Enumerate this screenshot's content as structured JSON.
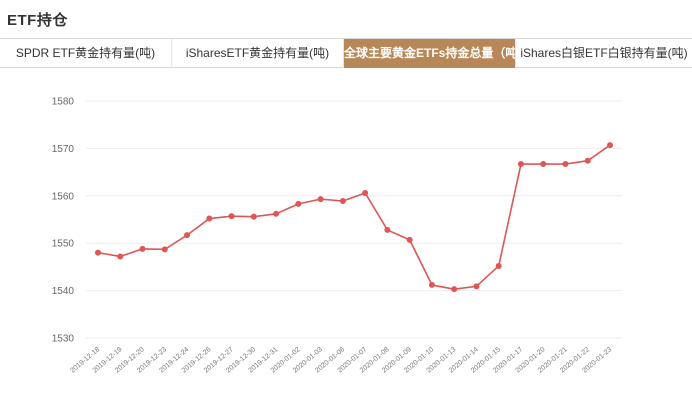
{
  "header": {
    "title": "ETF持仓"
  },
  "tabs": [
    {
      "label": "SPDR ETF黄金持有量(吨)",
      "active": false
    },
    {
      "label": "iSharesETF黄金持有量(吨)",
      "active": false
    },
    {
      "label": "全球主要黄金ETFs持金总量（吨）",
      "active": true
    },
    {
      "label": "iShares白银ETF白银持有量(吨)",
      "active": false
    }
  ],
  "colors": {
    "accent": "#b88758",
    "line": "#e05555",
    "grid": "#eeeeee"
  },
  "chart_data": {
    "type": "line",
    "title": "",
    "xlabel": "",
    "ylabel": "",
    "ylim": [
      1530,
      1580
    ],
    "yticks": [
      1530,
      1540,
      1550,
      1560,
      1570,
      1580
    ],
    "grid": true,
    "categories": [
      "2019-12-18",
      "2019-12-19",
      "2019-12-20",
      "2019-12-23",
      "2019-12-24",
      "2019-12-26",
      "2019-12-27",
      "2019-12-30",
      "2019-12-31",
      "2020-01-02",
      "2020-01-03",
      "2020-01-06",
      "2020-01-07",
      "2020-01-08",
      "2020-01-09",
      "2020-01-10",
      "2020-01-13",
      "2020-01-14",
      "2020-01-15",
      "2020-01-17",
      "2020-01-20",
      "2020-01-21",
      "2020-01-22",
      "2020-01-23"
    ],
    "series": [
      {
        "values": [
          1548.0,
          1547.2,
          1548.8,
          1548.7,
          1551.7,
          1555.2,
          1555.7,
          1555.6,
          1556.2,
          1558.3,
          1559.3,
          1558.9,
          1560.6,
          1552.8,
          1550.7,
          1541.2,
          1540.3,
          1540.9,
          1545.2,
          1566.7,
          1566.7,
          1566.7,
          1567.4,
          1570.7
        ]
      }
    ]
  }
}
